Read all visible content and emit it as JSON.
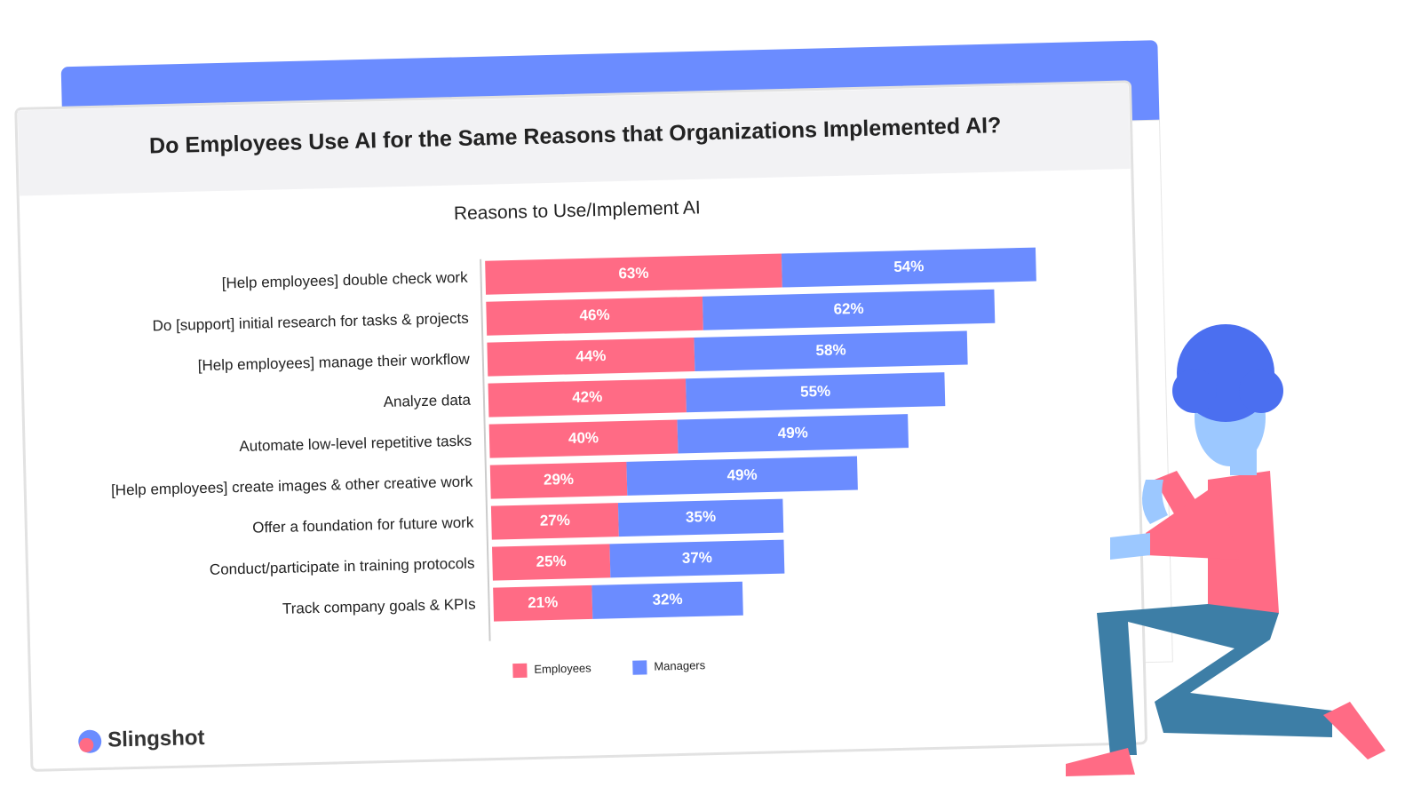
{
  "brand": "Slingshot",
  "chart_data": {
    "type": "stacked-bar-horizontal",
    "title": "Do Employees Use AI for the Same Reasons that Organizations Implemented AI?",
    "subtitle": "Reasons to Use/Implement AI",
    "categories": [
      "[Help employees] double check work",
      "Do [support] initial research for tasks & projects",
      "[Help employees] manage their workflow",
      "Analyze data",
      "Automate low-level repetitive tasks",
      "[Help employees] create images & other creative work",
      "Offer a foundation for future work",
      "Conduct/participate in training protocols",
      "Track company goals & KPIs"
    ],
    "series": [
      {
        "name": "Employees",
        "color": "#ff6b85",
        "values": [
          63,
          46,
          44,
          42,
          40,
          29,
          27,
          25,
          21
        ],
        "value_labels": [
          "63%",
          "46%",
          "44%",
          "42%",
          "40%",
          "29%",
          "27%",
          "25%",
          "21%"
        ]
      },
      {
        "name": "Managers",
        "color": "#6b8cff",
        "values": [
          54,
          62,
          58,
          55,
          49,
          49,
          35,
          37,
          32
        ],
        "value_labels": [
          "54%",
          "62%",
          "58%",
          "55%",
          "49%",
          "49%",
          "35%",
          "37%",
          "32%"
        ]
      }
    ],
    "legend": "bottom"
  }
}
